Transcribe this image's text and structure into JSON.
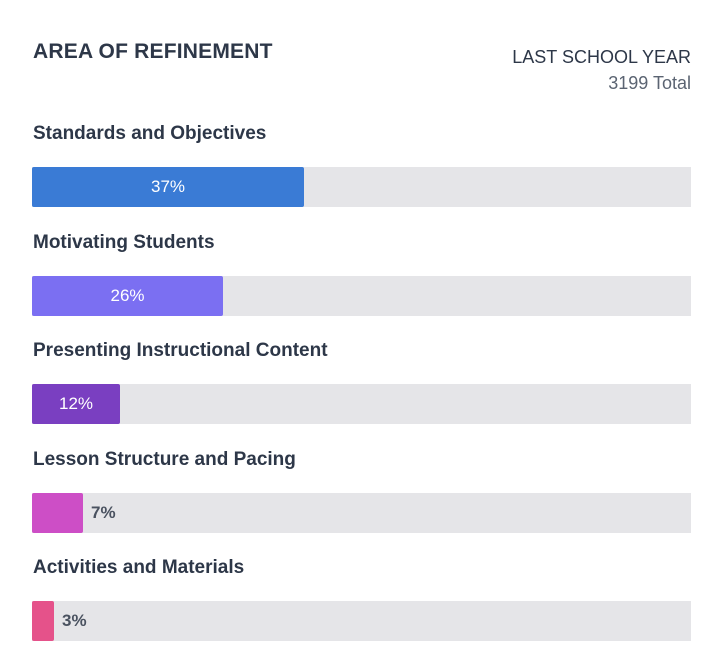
{
  "header": {
    "title": "AREA OF REFINEMENT",
    "period_label": "LAST SCHOOL YEAR",
    "total_label": "3199 Total"
  },
  "chart_data": {
    "type": "bar",
    "orientation": "horizontal",
    "title": "AREA OF REFINEMENT",
    "categories": [
      "Standards and Objectives",
      "Motivating Students",
      "Presenting Instructional Content",
      "Lesson Structure and Pacing",
      "Activities and Materials"
    ],
    "values": [
      37,
      26,
      12,
      7,
      3
    ],
    "value_labels": [
      "37%",
      "26%",
      "12%",
      "7%",
      "3%"
    ],
    "colors": [
      "#3a7bd5",
      "#7b6ff2",
      "#7a3fc1",
      "#cd4ec6",
      "#e5528a"
    ],
    "track_color": "#e5e5e8",
    "xlim": [
      0,
      100
    ],
    "unit": "%"
  }
}
